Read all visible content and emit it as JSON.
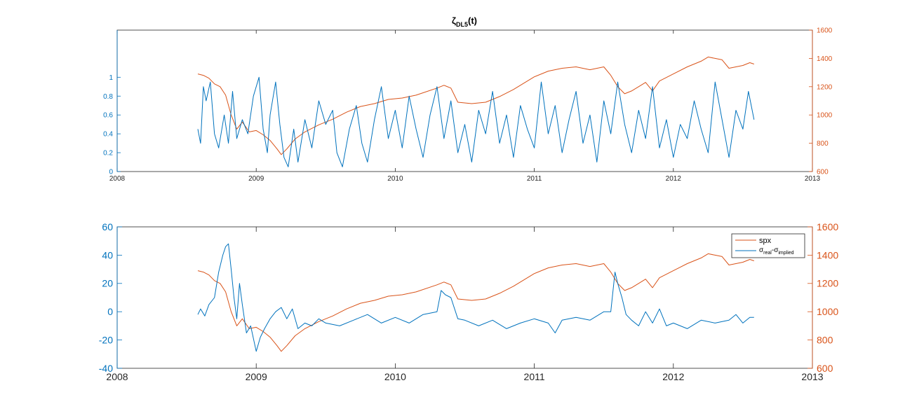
{
  "colors": {
    "blue": "#0072BD",
    "orange": "#D95319",
    "axis": "#262626",
    "legend_border": "#262626",
    "legend_bg": "#ffffff",
    "background": "#ffffff"
  },
  "chart_data": [
    {
      "type": "line",
      "title_main": "ζ",
      "title_sub": "DL5",
      "title_tail": "(t)",
      "xlim": [
        2008,
        2013
      ],
      "x_ticks": [
        2008,
        2009,
        2010,
        2011,
        2012,
        2013
      ],
      "x_tick_labels": [
        "2008",
        "2009",
        "2010",
        "2011",
        "2012",
        "2013"
      ],
      "ylim_left": [
        0,
        1.5
      ],
      "y_ticks_left": [
        0,
        0.2,
        0.4,
        0.6,
        0.8,
        1
      ],
      "y_tick_labels_left": [
        "0",
        "0.2",
        "0.4",
        "0.6",
        "0.8",
        "1"
      ],
      "ylim_right": [
        600,
        1600
      ],
      "y_ticks_right": [
        600,
        800,
        1000,
        1200,
        1400,
        1600
      ],
      "y_tick_labels_right": [
        "600",
        "800",
        "1000",
        "1200",
        "1400",
        "1600"
      ],
      "series": [
        {
          "name": "spx",
          "axis": "right",
          "color": "orange",
          "x": [
            2008.58,
            2008.62,
            2008.66,
            2008.7,
            2008.74,
            2008.78,
            2008.82,
            2008.86,
            2008.9,
            2008.95,
            2009.0,
            2009.05,
            2009.1,
            2009.15,
            2009.18,
            2009.22,
            2009.28,
            2009.35,
            2009.45,
            2009.55,
            2009.65,
            2009.75,
            2009.85,
            2009.95,
            2010.05,
            2010.15,
            2010.3,
            2010.35,
            2010.4,
            2010.45,
            2010.55,
            2010.65,
            2010.75,
            2010.85,
            2011.0,
            2011.1,
            2011.2,
            2011.3,
            2011.4,
            2011.5,
            2011.55,
            2011.6,
            2011.65,
            2011.7,
            2011.75,
            2011.8,
            2011.85,
            2011.9,
            2012.0,
            2012.1,
            2012.2,
            2012.25,
            2012.3,
            2012.35,
            2012.4,
            2012.45,
            2012.5,
            2012.55,
            2012.58
          ],
          "y": [
            1290,
            1280,
            1260,
            1220,
            1200,
            1140,
            1000,
            900,
            950,
            880,
            890,
            860,
            820,
            760,
            720,
            760,
            830,
            880,
            930,
            970,
            1020,
            1060,
            1080,
            1110,
            1120,
            1140,
            1190,
            1210,
            1190,
            1090,
            1080,
            1090,
            1130,
            1180,
            1270,
            1310,
            1330,
            1340,
            1320,
            1340,
            1280,
            1200,
            1150,
            1170,
            1200,
            1230,
            1170,
            1240,
            1290,
            1340,
            1380,
            1410,
            1400,
            1390,
            1330,
            1340,
            1350,
            1370,
            1360
          ]
        },
        {
          "name": "ζ DL5(t)",
          "axis": "left",
          "color": "blue",
          "x": [
            2008.58,
            2008.6,
            2008.62,
            2008.64,
            2008.67,
            2008.7,
            2008.73,
            2008.77,
            2008.8,
            2008.83,
            2008.86,
            2008.9,
            2008.94,
            2008.98,
            2009.02,
            2009.05,
            2009.08,
            2009.1,
            2009.14,
            2009.17,
            2009.2,
            2009.23,
            2009.27,
            2009.3,
            2009.35,
            2009.4,
            2009.45,
            2009.5,
            2009.55,
            2009.58,
            2009.62,
            2009.67,
            2009.72,
            2009.76,
            2009.8,
            2009.85,
            2009.9,
            2009.95,
            2010.0,
            2010.05,
            2010.1,
            2010.15,
            2010.2,
            2010.25,
            2010.3,
            2010.35,
            2010.4,
            2010.45,
            2010.5,
            2010.55,
            2010.6,
            2010.65,
            2010.7,
            2010.75,
            2010.8,
            2010.85,
            2010.9,
            2010.95,
            2011.0,
            2011.05,
            2011.1,
            2011.15,
            2011.2,
            2011.25,
            2011.3,
            2011.35,
            2011.4,
            2011.45,
            2011.5,
            2011.55,
            2011.6,
            2011.65,
            2011.7,
            2011.75,
            2011.8,
            2011.85,
            2011.9,
            2011.95,
            2012.0,
            2012.05,
            2012.1,
            2012.15,
            2012.2,
            2012.25,
            2012.3,
            2012.35,
            2012.4,
            2012.45,
            2012.5,
            2012.54,
            2012.58
          ],
          "y": [
            0.45,
            0.3,
            0.9,
            0.75,
            0.95,
            0.4,
            0.25,
            0.6,
            0.3,
            0.85,
            0.35,
            0.55,
            0.4,
            0.8,
            1.0,
            0.45,
            0.2,
            0.6,
            0.95,
            0.5,
            0.15,
            0.05,
            0.45,
            0.1,
            0.55,
            0.25,
            0.75,
            0.5,
            0.65,
            0.2,
            0.05,
            0.45,
            0.7,
            0.3,
            0.1,
            0.55,
            0.9,
            0.35,
            0.65,
            0.25,
            0.8,
            0.45,
            0.15,
            0.6,
            0.9,
            0.35,
            0.75,
            0.2,
            0.5,
            0.1,
            0.65,
            0.4,
            0.85,
            0.3,
            0.6,
            0.15,
            0.7,
            0.45,
            0.25,
            0.95,
            0.4,
            0.7,
            0.2,
            0.55,
            0.85,
            0.3,
            0.6,
            0.1,
            0.75,
            0.4,
            0.95,
            0.5,
            0.2,
            0.65,
            0.35,
            0.9,
            0.25,
            0.55,
            0.15,
            0.5,
            0.35,
            0.75,
            0.45,
            0.2,
            0.95,
            0.55,
            0.15,
            0.65,
            0.45,
            0.85,
            0.55
          ]
        }
      ]
    },
    {
      "type": "line",
      "xlim": [
        2008,
        2013
      ],
      "x_ticks": [
        2008,
        2009,
        2010,
        2011,
        2012,
        2013
      ],
      "x_tick_labels": [
        "2008",
        "2009",
        "2010",
        "2011",
        "2012",
        "2013"
      ],
      "ylim_left": [
        -40,
        60
      ],
      "y_ticks_left": [
        -40,
        -20,
        0,
        20,
        40,
        60
      ],
      "y_tick_labels_left": [
        "-40",
        "-20",
        "0",
        "20",
        "40",
        "60"
      ],
      "ylim_right": [
        600,
        1600
      ],
      "y_ticks_right": [
        600,
        800,
        1000,
        1200,
        1400,
        1600
      ],
      "y_tick_labels_right": [
        "600",
        "800",
        "1000",
        "1200",
        "1400",
        "1600"
      ],
      "legend": {
        "placement": "top-right",
        "entries": [
          {
            "label": "spx",
            "color": "orange"
          },
          {
            "label_main": "σ",
            "label_sub1": "real",
            "label_sep": "-σ",
            "label_sub2": "implied",
            "color": "blue"
          }
        ]
      },
      "series": [
        {
          "name": "spx",
          "axis": "right",
          "color": "orange",
          "x": [
            2008.58,
            2008.62,
            2008.66,
            2008.7,
            2008.74,
            2008.78,
            2008.82,
            2008.86,
            2008.9,
            2008.95,
            2009.0,
            2009.05,
            2009.1,
            2009.15,
            2009.18,
            2009.22,
            2009.28,
            2009.35,
            2009.45,
            2009.55,
            2009.65,
            2009.75,
            2009.85,
            2009.95,
            2010.05,
            2010.15,
            2010.3,
            2010.35,
            2010.4,
            2010.45,
            2010.55,
            2010.65,
            2010.75,
            2010.85,
            2011.0,
            2011.1,
            2011.2,
            2011.3,
            2011.4,
            2011.5,
            2011.55,
            2011.6,
            2011.65,
            2011.7,
            2011.75,
            2011.8,
            2011.85,
            2011.9,
            2012.0,
            2012.1,
            2012.2,
            2012.25,
            2012.3,
            2012.35,
            2012.4,
            2012.45,
            2012.5,
            2012.55,
            2012.58
          ],
          "y": [
            1290,
            1280,
            1260,
            1220,
            1200,
            1140,
            1000,
            900,
            950,
            880,
            890,
            860,
            820,
            760,
            720,
            760,
            830,
            880,
            930,
            970,
            1020,
            1060,
            1080,
            1110,
            1120,
            1140,
            1190,
            1210,
            1190,
            1090,
            1080,
            1090,
            1130,
            1180,
            1270,
            1310,
            1330,
            1340,
            1320,
            1340,
            1280,
            1200,
            1150,
            1170,
            1200,
            1230,
            1170,
            1240,
            1290,
            1340,
            1380,
            1410,
            1400,
            1390,
            1330,
            1340,
            1350,
            1370,
            1360
          ]
        },
        {
          "name": "σreal-σimplied",
          "axis": "left",
          "color": "blue",
          "x": [
            2008.58,
            2008.6,
            2008.63,
            2008.66,
            2008.7,
            2008.73,
            2008.76,
            2008.78,
            2008.8,
            2008.82,
            2008.84,
            2008.86,
            2008.88,
            2008.9,
            2008.93,
            2008.96,
            2009.0,
            2009.03,
            2009.06,
            2009.1,
            2009.14,
            2009.18,
            2009.22,
            2009.26,
            2009.3,
            2009.35,
            2009.4,
            2009.45,
            2009.5,
            2009.6,
            2009.7,
            2009.8,
            2009.9,
            2010.0,
            2010.1,
            2010.2,
            2010.3,
            2010.33,
            2010.36,
            2010.4,
            2010.45,
            2010.5,
            2010.6,
            2010.7,
            2010.8,
            2010.9,
            2011.0,
            2011.1,
            2011.15,
            2011.2,
            2011.3,
            2011.4,
            2011.5,
            2011.55,
            2011.58,
            2011.6,
            2011.63,
            2011.66,
            2011.7,
            2011.75,
            2011.8,
            2011.85,
            2011.9,
            2011.95,
            2012.0,
            2012.1,
            2012.2,
            2012.3,
            2012.4,
            2012.45,
            2012.5,
            2012.55,
            2012.58
          ],
          "y": [
            -2,
            2,
            -3,
            5,
            10,
            28,
            40,
            46,
            48,
            30,
            10,
            -5,
            20,
            5,
            -15,
            -10,
            -28,
            -18,
            -12,
            -5,
            0,
            3,
            -5,
            2,
            -12,
            -8,
            -10,
            -5,
            -8,
            -10,
            -6,
            -2,
            -8,
            -4,
            -8,
            -2,
            0,
            15,
            12,
            10,
            -5,
            -6,
            -10,
            -6,
            -12,
            -8,
            -5,
            -8,
            -15,
            -6,
            -4,
            -6,
            0,
            0,
            28,
            20,
            10,
            -2,
            -6,
            -10,
            0,
            -8,
            2,
            -10,
            -8,
            -12,
            -6,
            -8,
            -6,
            -2,
            -8,
            -4,
            -4
          ]
        }
      ]
    }
  ]
}
